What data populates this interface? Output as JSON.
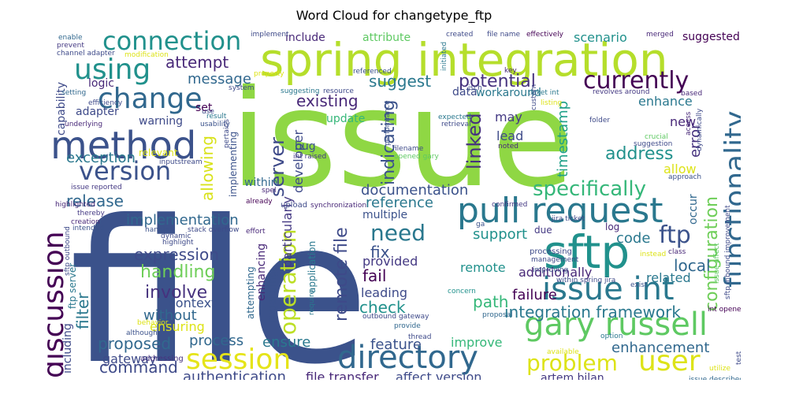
{
  "chart_data": {
    "type": "wordcloud",
    "title": "Word Cloud for changetype_ftp",
    "colormap": "viridis",
    "words": [
      {
        "text": "file",
        "color": "#3b528b"
      },
      {
        "text": "issue",
        "color": "#8fd744"
      },
      {
        "text": "spring integration",
        "color": "#b5de2b"
      },
      {
        "text": "method",
        "color": "#3b528b"
      },
      {
        "text": "sftp",
        "color": "#21918c"
      },
      {
        "text": "pull request",
        "color": "#2a788e"
      },
      {
        "text": "gary russell",
        "color": "#5ec962"
      },
      {
        "text": "directory",
        "color": "#31688e"
      },
      {
        "text": "session",
        "color": "#e5e419"
      },
      {
        "text": "discussion",
        "color": "#440154"
      },
      {
        "text": "issue int",
        "color": "#2a788e"
      },
      {
        "text": "functionality",
        "color": "#31688e"
      },
      {
        "text": "change",
        "color": "#31688e"
      },
      {
        "text": "connection",
        "color": "#21918c"
      },
      {
        "text": "using",
        "color": "#21918c"
      },
      {
        "text": "version",
        "color": "#3b528b"
      },
      {
        "text": "currently",
        "color": "#440154"
      },
      {
        "text": "user",
        "color": "#dde318"
      },
      {
        "text": "operation",
        "color": "#bddf26"
      },
      {
        "text": "specifically",
        "color": "#35b779"
      },
      {
        "text": "ftp",
        "color": "#3b528b"
      },
      {
        "text": "problem",
        "color": "#dde318"
      },
      {
        "text": "need",
        "color": "#2a788e"
      },
      {
        "text": "server",
        "color": "#3e4a89"
      },
      {
        "text": "configuration",
        "color": "#6ece58"
      },
      {
        "text": "integration framework",
        "color": "#2a788e"
      },
      {
        "text": "documentation",
        "color": "#3b528b"
      },
      {
        "text": "implementation",
        "color": "#31688e"
      },
      {
        "text": "handling",
        "color": "#6ece58"
      },
      {
        "text": "involve",
        "color": "#46327e"
      },
      {
        "text": "expression",
        "color": "#3e4a89"
      },
      {
        "text": "exception",
        "color": "#2a788e"
      },
      {
        "text": "indicating",
        "color": "#3b528b"
      },
      {
        "text": "linked",
        "color": "#46327e"
      },
      {
        "text": "remote file",
        "color": "#3e4a89"
      },
      {
        "text": "potential",
        "color": "#46327e"
      },
      {
        "text": "existing",
        "color": "#482878"
      },
      {
        "text": "suggest",
        "color": "#2a788e"
      },
      {
        "text": "attempt",
        "color": "#482878"
      },
      {
        "text": "message",
        "color": "#31688e"
      },
      {
        "text": "proposed",
        "color": "#31688e"
      },
      {
        "text": "command",
        "color": "#3e4a89"
      },
      {
        "text": "authentication",
        "color": "#3e4a89"
      },
      {
        "text": "file transfer",
        "color": "#482878"
      },
      {
        "text": "affect version",
        "color": "#3e4a89"
      },
      {
        "text": "enhancement",
        "color": "#31688e"
      },
      {
        "text": "address",
        "color": "#21918c"
      },
      {
        "text": "timestamp",
        "color": "#1fa088"
      },
      {
        "text": "allowing",
        "color": "#d8e219"
      },
      {
        "text": "release",
        "color": "#31688e"
      },
      {
        "text": "feature",
        "color": "#3b528b"
      },
      {
        "text": "ensure",
        "color": "#2a788e"
      },
      {
        "text": "process",
        "color": "#31688e"
      },
      {
        "text": "support",
        "color": "#21918c"
      },
      {
        "text": "reference",
        "color": "#2a788e"
      },
      {
        "text": "local",
        "color": "#31688e"
      },
      {
        "text": "code",
        "color": "#2a788e"
      },
      {
        "text": "fix",
        "color": "#3b528b"
      },
      {
        "text": "fail",
        "color": "#440154"
      },
      {
        "text": "check",
        "color": "#21918c"
      },
      {
        "text": "path",
        "color": "#35b779"
      },
      {
        "text": "failure",
        "color": "#440154"
      },
      {
        "text": "leading",
        "color": "#3e4a89"
      },
      {
        "text": "provided",
        "color": "#443983"
      },
      {
        "text": "remote",
        "color": "#21918c"
      },
      {
        "text": "additionally",
        "color": "#482878"
      },
      {
        "text": "related",
        "color": "#2a788e"
      },
      {
        "text": "without",
        "color": "#31688e"
      },
      {
        "text": "context",
        "color": "#3b528b"
      },
      {
        "text": "filter",
        "color": "#2a788e"
      },
      {
        "text": "ensuring",
        "color": "#dde318"
      },
      {
        "text": "gateway",
        "color": "#3e4a89"
      },
      {
        "text": "improve",
        "color": "#35b779"
      },
      {
        "text": "artem bilan",
        "color": "#443983"
      },
      {
        "text": "enhance",
        "color": "#2a788e"
      },
      {
        "text": "error",
        "color": "#46327e"
      },
      {
        "text": "allow",
        "color": "#dde318"
      },
      {
        "text": "new",
        "color": "#482878"
      },
      {
        "text": "lead",
        "color": "#3e4a89"
      },
      {
        "text": "may",
        "color": "#443983"
      },
      {
        "text": "update",
        "color": "#35b779"
      },
      {
        "text": "developer",
        "color": "#3e4a89"
      },
      {
        "text": "scenario",
        "color": "#21918c"
      },
      {
        "text": "include",
        "color": "#482878"
      },
      {
        "text": "attribute",
        "color": "#5ec962"
      },
      {
        "text": "suggested",
        "color": "#440154"
      },
      {
        "text": "multiple",
        "color": "#3b528b"
      },
      {
        "text": "particularly",
        "color": "#443983"
      },
      {
        "text": "enhancing",
        "color": "#482878"
      },
      {
        "text": "regarding",
        "color": "#3b528b"
      },
      {
        "text": "within",
        "color": "#31688e"
      },
      {
        "text": "workaround",
        "color": "#2a788e"
      },
      {
        "text": "data",
        "color": "#3e4a89"
      },
      {
        "text": "bug",
        "color": "#3b528b"
      },
      {
        "text": "set",
        "color": "#440154"
      },
      {
        "text": "warning",
        "color": "#3e4a89"
      },
      {
        "text": "adapter",
        "color": "#3e4a89"
      },
      {
        "text": "logic",
        "color": "#482878"
      },
      {
        "text": "capability",
        "color": "#3e4a89"
      },
      {
        "text": "relevant",
        "color": "#dde318"
      },
      {
        "text": "log",
        "color": "#482878"
      },
      {
        "text": "due",
        "color": "#443983"
      },
      {
        "text": "occur",
        "color": "#31688e"
      },
      {
        "text": "ftp server",
        "color": "#2a788e"
      },
      {
        "text": "including",
        "color": "#3e4a89"
      },
      {
        "text": "addressing",
        "color": "#46327e"
      },
      {
        "text": "although",
        "color": "#3b528b"
      },
      {
        "text": "behavior",
        "color": "#dde318"
      },
      {
        "text": "implementing",
        "color": "#3b528b"
      },
      {
        "text": "application",
        "color": "#2a788e"
      },
      {
        "text": "attempting",
        "color": "#31688e"
      },
      {
        "text": "upload",
        "color": "#3e4a89"
      },
      {
        "text": "synchronization",
        "color": "#482878"
      },
      {
        "text": "processing",
        "color": "#3e4a89"
      },
      {
        "text": "management",
        "color": "#3e4a89"
      },
      {
        "text": "improving",
        "color": "#3b528b"
      },
      {
        "text": "within spring jira",
        "color": "#3e4a89"
      },
      {
        "text": "exist",
        "color": "#3b528b"
      },
      {
        "text": "instead",
        "color": "#dde318"
      },
      {
        "text": "class",
        "color": "#482878"
      },
      {
        "text": "issue affect",
        "color": "#5ec962"
      },
      {
        "text": "sftp inbound improvement",
        "color": "#3e4a89"
      },
      {
        "text": "int opened",
        "color": "#440154"
      },
      {
        "text": "utilize",
        "color": "#dde318"
      },
      {
        "text": "test",
        "color": "#3e4a89"
      },
      {
        "text": "issue described",
        "color": "#31688e"
      },
      {
        "text": "available",
        "color": "#dde318"
      },
      {
        "text": "option",
        "color": "#2a788e"
      },
      {
        "text": "thread",
        "color": "#3e4a89"
      },
      {
        "text": "provide",
        "color": "#31688e"
      },
      {
        "text": "outbound gateway",
        "color": "#3e4a89"
      },
      {
        "text": "concern",
        "color": "#21918c"
      },
      {
        "text": "proposal",
        "color": "#31688e"
      },
      {
        "text": "require",
        "color": "#2a788e"
      },
      {
        "text": "confirmed",
        "color": "#443983"
      },
      {
        "text": "ga",
        "color": "#3b528b"
      },
      {
        "text": "jira ticket",
        "color": "#3e4a89"
      },
      {
        "text": "spel",
        "color": "#482878"
      },
      {
        "text": "already",
        "color": "#440154"
      },
      {
        "text": "effort",
        "color": "#482878"
      },
      {
        "text": "stack overflow",
        "color": "#3e4a89"
      },
      {
        "text": "handle",
        "color": "#3b528b"
      },
      {
        "text": "highlight",
        "color": "#3e4a89"
      },
      {
        "text": "dynamic",
        "color": "#3e4a89"
      },
      {
        "text": "creation",
        "color": "#482878"
      },
      {
        "text": "intended",
        "color": "#3b528b"
      },
      {
        "text": "thereby",
        "color": "#443983"
      },
      {
        "text": "highlighted",
        "color": "#482878"
      },
      {
        "text": "issue reported",
        "color": "#443983"
      },
      {
        "text": "inputstream",
        "color": "#3e4a89"
      },
      {
        "text": "int raised",
        "color": "#443983"
      },
      {
        "text": "filename",
        "color": "#3e4a89"
      },
      {
        "text": "opened gary",
        "color": "#5ec962"
      },
      {
        "text": "noted",
        "color": "#482878"
      },
      {
        "text": "expected",
        "color": "#2a788e"
      },
      {
        "text": "retrieval",
        "color": "#3e4a89"
      },
      {
        "text": "performance",
        "color": "#3b528b"
      },
      {
        "text": "folder",
        "color": "#3e4a89"
      },
      {
        "text": "revolves around",
        "color": "#443983"
      },
      {
        "text": "crucial",
        "color": "#5ec962"
      },
      {
        "text": "suggestion",
        "color": "#3e4a89"
      },
      {
        "text": "approach",
        "color": "#3b528b"
      },
      {
        "text": "access",
        "color": "#482878"
      },
      {
        "text": "dynamically",
        "color": "#3e4a89"
      },
      {
        "text": "based",
        "color": "#482878"
      },
      {
        "text": "listing",
        "color": "#dde318"
      },
      {
        "text": "result",
        "color": "#2a788e"
      },
      {
        "text": "use",
        "color": "#3e4a89"
      },
      {
        "text": "usability",
        "color": "#3b528b"
      },
      {
        "text": "efficiency",
        "color": "#3e4a89"
      },
      {
        "text": "setting",
        "color": "#31688e"
      },
      {
        "text": "underlying",
        "color": "#482878"
      },
      {
        "text": "system",
        "color": "#3e4a89"
      },
      {
        "text": "property",
        "color": "#dde318"
      },
      {
        "text": "referenced",
        "color": "#3b528b"
      },
      {
        "text": "suggesting",
        "color": "#2a788e"
      },
      {
        "text": "resource",
        "color": "#3e4a89"
      },
      {
        "text": "jsch",
        "color": "#3e4a89"
      },
      {
        "text": "key",
        "color": "#482878"
      },
      {
        "text": "ticket int",
        "color": "#2a788e"
      },
      {
        "text": "custom",
        "color": "#3e4a89"
      },
      {
        "text": "initiated",
        "color": "#2a788e"
      },
      {
        "text": "file name",
        "color": "#3e4a89"
      },
      {
        "text": "created",
        "color": "#3e4a89"
      },
      {
        "text": "effectively",
        "color": "#440154"
      },
      {
        "text": "merged",
        "color": "#482878"
      },
      {
        "text": "implement",
        "color": "#3e4a89"
      },
      {
        "text": "enable",
        "color": "#31688e"
      },
      {
        "text": "prevent",
        "color": "#443983"
      },
      {
        "text": "channel adapter",
        "color": "#3e4a89"
      },
      {
        "text": "modification",
        "color": "#dde318"
      },
      {
        "text": "pertains",
        "color": "#3e4a89"
      },
      {
        "text": "sftp outbound",
        "color": "#3e4a89"
      }
    ]
  }
}
